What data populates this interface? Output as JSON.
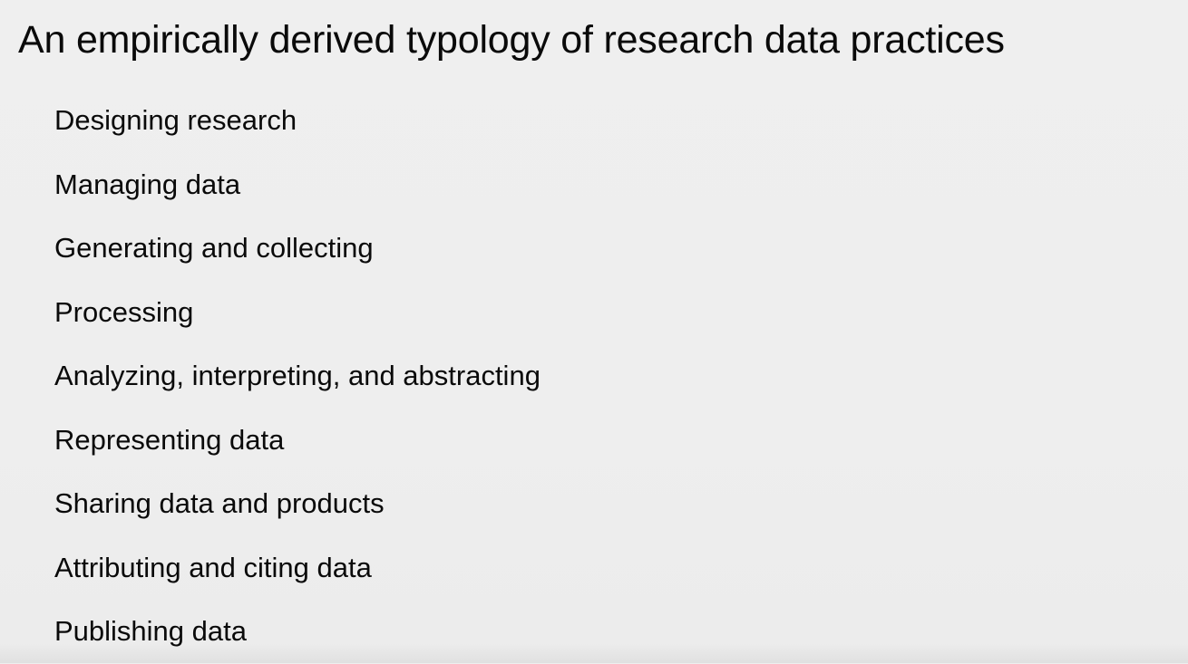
{
  "slide": {
    "title": "An empirically derived typology of research data practices",
    "background_color": "#eeeeee",
    "text_color": "#0a0a0a",
    "items": [
      {
        "label": "Designing research"
      },
      {
        "label": "Managing data"
      },
      {
        "label": "Generating and collecting"
      },
      {
        "label": "Processing"
      },
      {
        "label": "Analyzing, interpreting, and abstracting"
      },
      {
        "label": "Representing data"
      },
      {
        "label": "Sharing data and products"
      },
      {
        "label": "Attributing and citing data"
      },
      {
        "label": "Publishing data"
      }
    ]
  }
}
